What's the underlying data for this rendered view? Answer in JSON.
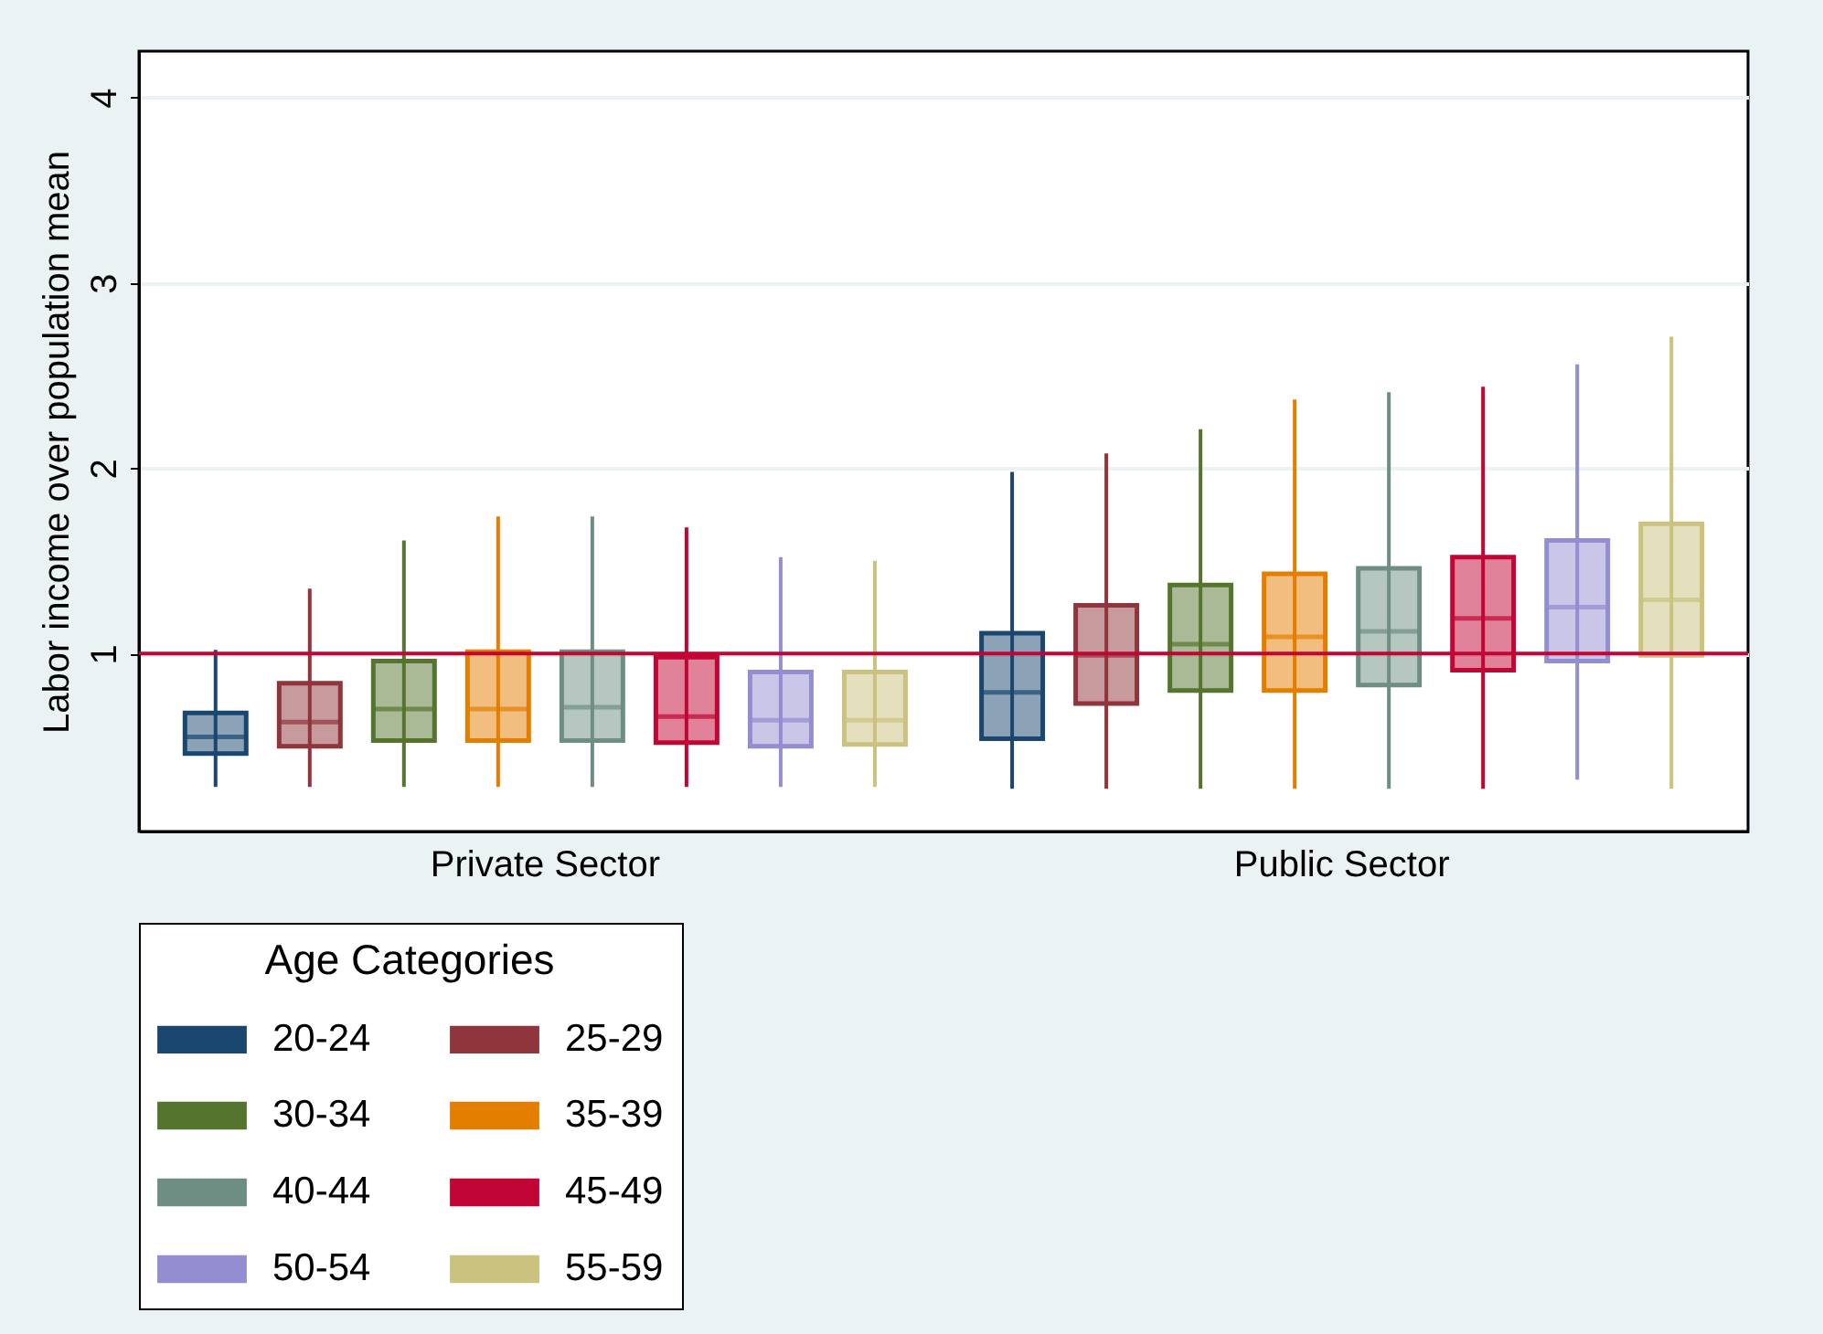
{
  "chart_data": {
    "type": "box",
    "ylabel": "Labor income over population mean",
    "legend_title": "Age Categories",
    "categories": [
      "Private Sector",
      "Public Sector"
    ],
    "ylim": [
      0.04,
      4.25
    ],
    "yticks": [
      1,
      2,
      3,
      4
    ],
    "grid": "y",
    "legend": "bottom",
    "ref_lines": [
      {
        "axis": "y",
        "value": 1,
        "color": "#c10534"
      }
    ],
    "series": [
      {
        "name": "20-24",
        "color": "#1a476f",
        "boxes": [
          {
            "low": 0.28,
            "q1": 0.46,
            "median": 0.55,
            "q3": 0.68,
            "high": 1.02
          },
          {
            "low": 0.27,
            "q1": 0.54,
            "median": 0.79,
            "q3": 1.11,
            "high": 1.98
          }
        ]
      },
      {
        "name": "25-29",
        "color": "#90353b",
        "boxes": [
          {
            "low": 0.28,
            "q1": 0.5,
            "median": 0.63,
            "q3": 0.84,
            "high": 1.35
          },
          {
            "low": 0.27,
            "q1": 0.73,
            "median": 0.99,
            "q3": 1.26,
            "high": 2.08
          }
        ]
      },
      {
        "name": "30-34",
        "color": "#55752f",
        "boxes": [
          {
            "low": 0.28,
            "q1": 0.53,
            "median": 0.7,
            "q3": 0.96,
            "high": 1.61
          },
          {
            "low": 0.27,
            "q1": 0.8,
            "median": 1.05,
            "q3": 1.37,
            "high": 2.21
          }
        ]
      },
      {
        "name": "35-39",
        "color": "#e37e00",
        "boxes": [
          {
            "low": 0.28,
            "q1": 0.53,
            "median": 0.7,
            "q3": 1.01,
            "high": 1.74
          },
          {
            "low": 0.27,
            "q1": 0.8,
            "median": 1.09,
            "q3": 1.43,
            "high": 2.37
          }
        ]
      },
      {
        "name": "40-44",
        "color": "#6e8e84",
        "boxes": [
          {
            "low": 0.28,
            "q1": 0.53,
            "median": 0.71,
            "q3": 1.01,
            "high": 1.74
          },
          {
            "low": 0.27,
            "q1": 0.83,
            "median": 1.12,
            "q3": 1.46,
            "high": 2.41
          }
        ]
      },
      {
        "name": "45-49",
        "color": "#c10534",
        "boxes": [
          {
            "low": 0.28,
            "q1": 0.52,
            "median": 0.66,
            "q3": 0.98,
            "high": 1.68
          },
          {
            "low": 0.27,
            "q1": 0.91,
            "median": 1.19,
            "q3": 1.52,
            "high": 2.44
          }
        ]
      },
      {
        "name": "50-54",
        "color": "#938dd2",
        "boxes": [
          {
            "low": 0.28,
            "q1": 0.5,
            "median": 0.64,
            "q3": 0.9,
            "high": 1.52
          },
          {
            "low": 0.32,
            "q1": 0.96,
            "median": 1.25,
            "q3": 1.61,
            "high": 2.56
          }
        ]
      },
      {
        "name": "55-59",
        "color": "#cac27e",
        "boxes": [
          {
            "low": 0.28,
            "q1": 0.51,
            "median": 0.64,
            "q3": 0.9,
            "high": 1.5
          },
          {
            "low": 0.27,
            "q1": 0.99,
            "median": 1.29,
            "q3": 1.7,
            "high": 2.71
          }
        ]
      }
    ]
  }
}
